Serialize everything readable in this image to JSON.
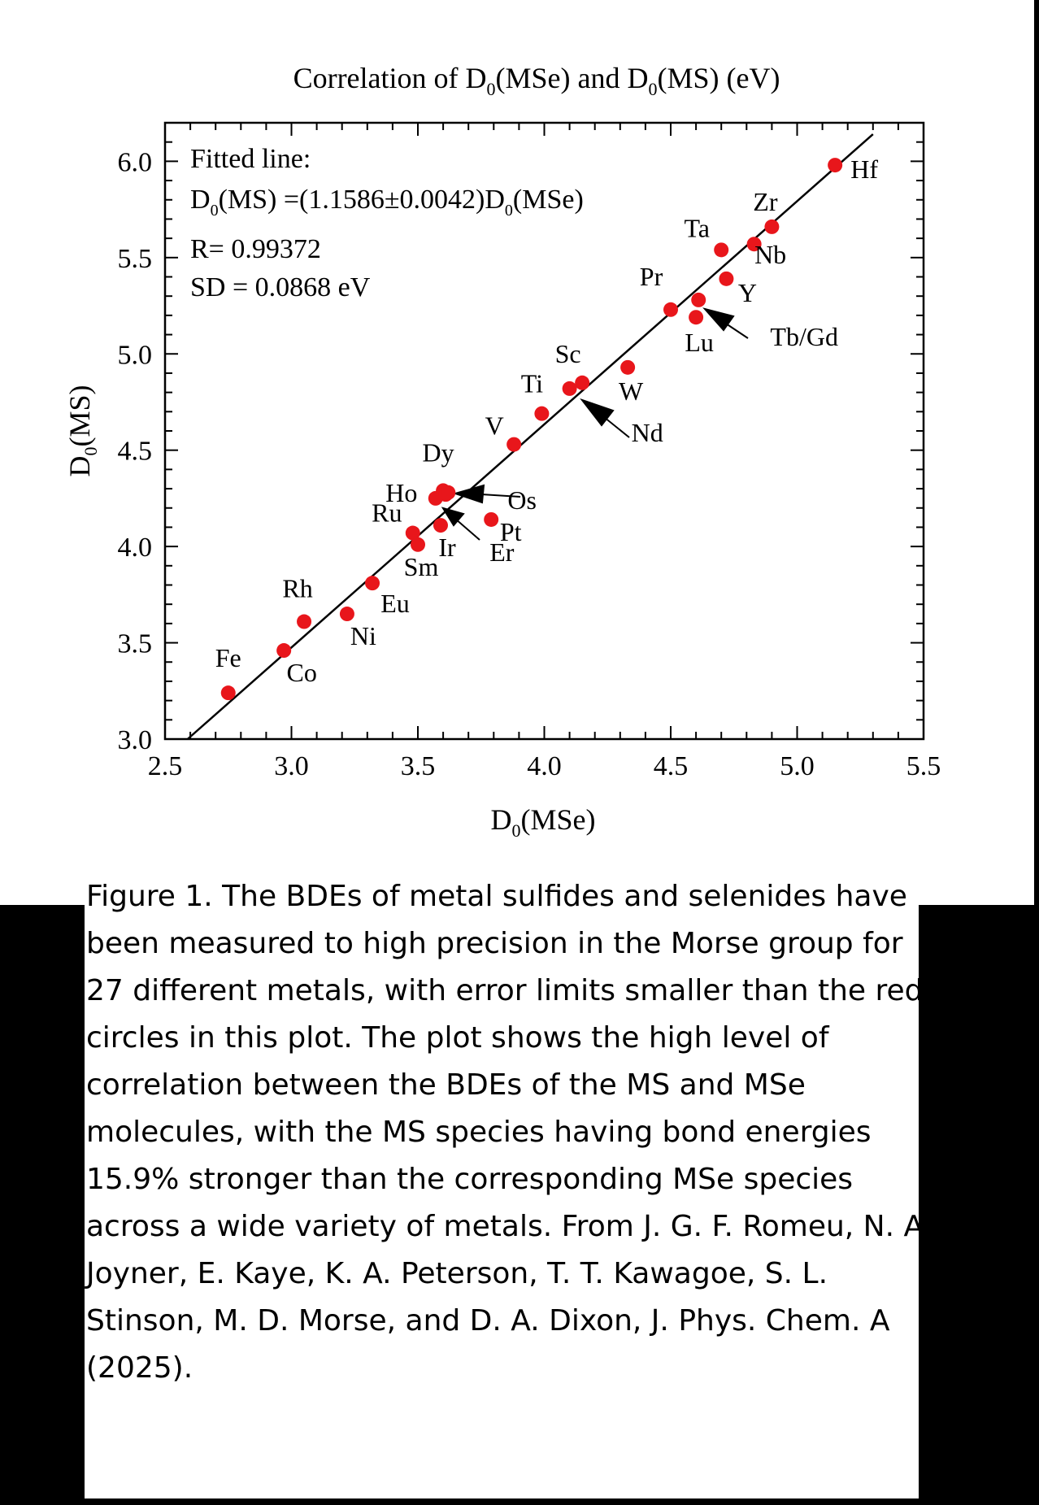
{
  "chart_data": {
    "type": "scatter",
    "title": {
      "pre": "Correlation of D",
      "sub1": "0",
      "mid": "(MSe) and D",
      "sub2": "0",
      "post": "(MS) (eV)"
    },
    "xlabel": {
      "main": "D",
      "sub": "0",
      "rest": "(MSe)"
    },
    "ylabel": {
      "main": "D",
      "sub": "0",
      "rest": "(MS)"
    },
    "xlim": [
      2.5,
      5.5
    ],
    "ylim": [
      3.0,
      6.2
    ],
    "x_ticks": [
      2.5,
      3.0,
      3.5,
      4.0,
      4.5,
      5.0,
      5.5
    ],
    "x_tick_labels": [
      "2.5",
      "3.0",
      "3.5",
      "4.0",
      "4.5",
      "5.0",
      "5.5"
    ],
    "y_ticks": [
      3.0,
      3.5,
      4.0,
      4.5,
      5.0,
      5.5,
      6.0
    ],
    "y_tick_labels": [
      "3.0",
      "3.5",
      "4.0",
      "4.5",
      "5.0",
      "5.5",
      "6.0"
    ],
    "marker_color": "#e8161b",
    "fit": {
      "slope": 1.1586,
      "line1": "Fitted line:",
      "line2": {
        "a": "D",
        "a_sub": "0",
        "b": "(MS) =(1.1586±0.0042)D",
        "b_sub": "0",
        "c": "(MSe)"
      },
      "line3": "R= 0.99372",
      "line4": "SD = 0.0868 eV"
    },
    "points": [
      {
        "label": "Fe",
        "x": 2.75,
        "y": 3.24
      },
      {
        "label": "Co",
        "x": 2.97,
        "y": 3.46
      },
      {
        "label": "Rh",
        "x": 3.05,
        "y": 3.61
      },
      {
        "label": "Ni",
        "x": 3.22,
        "y": 3.65
      },
      {
        "label": "Eu",
        "x": 3.32,
        "y": 3.81
      },
      {
        "label": "Ru",
        "x": 3.48,
        "y": 4.07
      },
      {
        "label": "Sm",
        "x": 3.5,
        "y": 4.01
      },
      {
        "label": "Ho",
        "x": 3.57,
        "y": 4.25
      },
      {
        "label": "Dy",
        "x": 3.6,
        "y": 4.29
      },
      {
        "label": "Os",
        "x": 3.61,
        "y": 4.27
      },
      {
        "label": "Er",
        "x": 3.62,
        "y": 4.28
      },
      {
        "label": "Ir",
        "x": 3.59,
        "y": 4.11
      },
      {
        "label": "Pt",
        "x": 3.79,
        "y": 4.14
      },
      {
        "label": "V",
        "x": 3.88,
        "y": 4.53
      },
      {
        "label": "Ti",
        "x": 3.99,
        "y": 4.69
      },
      {
        "label": "Sc",
        "x": 4.1,
        "y": 4.82
      },
      {
        "label": "Nd",
        "x": 4.15,
        "y": 4.85
      },
      {
        "label": "W",
        "x": 4.33,
        "y": 4.93
      },
      {
        "label": "Pr",
        "x": 4.5,
        "y": 5.23
      },
      {
        "label": "Tb/Gd",
        "x": 4.61,
        "y": 5.28
      },
      {
        "label": "Lu",
        "x": 4.6,
        "y": 5.19
      },
      {
        "label": "Ta",
        "x": 4.7,
        "y": 5.54
      },
      {
        "label": "Y",
        "x": 4.72,
        "y": 5.39
      },
      {
        "label": "Nb",
        "x": 4.83,
        "y": 5.57
      },
      {
        "label": "Zr",
        "x": 4.9,
        "y": 5.66
      },
      {
        "label": "Hf",
        "x": 5.15,
        "y": 5.98
      }
    ]
  },
  "caption": "Figure 1. The BDEs of metal sulfides and selenides have been measured to high precision in the Morse group for 27 different metals, with error limits smaller than the red circles in this plot. The plot shows the high level of correlation between the BDEs of the MS and MSe molecules, with the MS species having bond energies 15.9% stronger than the corresponding MSe species across a wide variety of metals. From J. G. F. Romeu, N. A. Joyner, E. Kaye, K. A. Peterson, T. T. Kawagoe, S. L. Stinson, M. D. Morse, and D. A. Dixon, J. Phys. Chem. A (2025)."
}
